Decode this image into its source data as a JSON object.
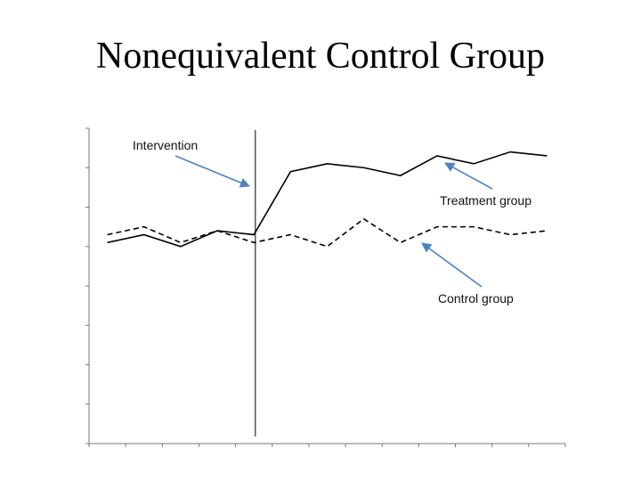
{
  "slide": {
    "title": "Nonequivalent Control Group"
  },
  "chart_data": {
    "type": "line",
    "title": "Nonequivalent Control Group",
    "xlabel": "",
    "ylabel": "",
    "x": [
      1,
      2,
      3,
      4,
      5,
      6,
      7,
      8,
      9,
      10,
      11,
      12,
      13
    ],
    "xlim": [
      0.5,
      13.5
    ],
    "ylim": [
      0,
      8
    ],
    "grid": false,
    "legend": "none",
    "intervention_x": 5,
    "series": [
      {
        "name": "Treatment group",
        "style": "solid",
        "color": "#000000",
        "values": [
          5.1,
          5.3,
          5.0,
          5.4,
          5.3,
          6.9,
          7.1,
          7.0,
          6.8,
          7.3,
          7.1,
          7.4,
          7.3
        ]
      },
      {
        "name": "Control group",
        "style": "dashed",
        "color": "#000000",
        "values": [
          5.3,
          5.5,
          5.1,
          5.4,
          5.1,
          5.3,
          5.0,
          5.7,
          5.1,
          5.5,
          5.5,
          5.3,
          5.4
        ]
      }
    ],
    "annotations": [
      {
        "text": "Intervention",
        "arrow_color": "#4f81bd"
      },
      {
        "text": "Treatment group",
        "arrow_color": "#4f81bd"
      },
      {
        "text": "Control group",
        "arrow_color": "#4f81bd"
      }
    ]
  }
}
